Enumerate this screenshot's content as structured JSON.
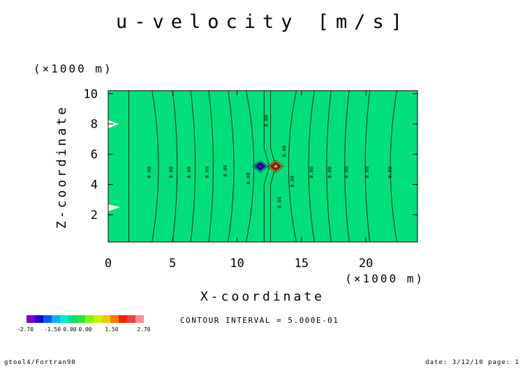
{
  "chart_data": {
    "type": "heatmap",
    "title": "u-velocity [m/s]",
    "xlabel": "X-coordinate",
    "ylabel": "Z-coordinate",
    "x_unit": "(×1000 m)",
    "y_unit": "(×1000 m)",
    "xlim": [
      0,
      24
    ],
    "ylim": [
      0.2,
      10.2
    ],
    "x_ticks": [
      "0",
      "5",
      "10",
      "15",
      "20"
    ],
    "y_ticks": [
      "2",
      "4",
      "6",
      "8",
      "10"
    ],
    "contour_interval_text": "CONTOUR INTERVAL = 5.000E-01",
    "contour_label": "0.00",
    "background_value": 0.0,
    "extrema": [
      {
        "x": 11.8,
        "z": 5.2,
        "value": -2.7
      },
      {
        "x": 13.0,
        "z": 5.2,
        "value": 2.7
      }
    ],
    "colorbar": {
      "colors": [
        "#7a00c8",
        "#1c00d8",
        "#0058ff",
        "#00b4ff",
        "#00e8d4",
        "#00e07a",
        "#28e636",
        "#8cf000",
        "#ccf000",
        "#f0c800",
        "#ff7800",
        "#ff1c00",
        "#f04040",
        "#ff8c8c"
      ],
      "labels": [
        "-2.70",
        "-1.50",
        "0.00",
        "0.00",
        "1.50",
        "2.70"
      ]
    }
  },
  "footer": {
    "left": "gtool4/Fortran90",
    "right": "date: 3/12/10 page: 1"
  }
}
